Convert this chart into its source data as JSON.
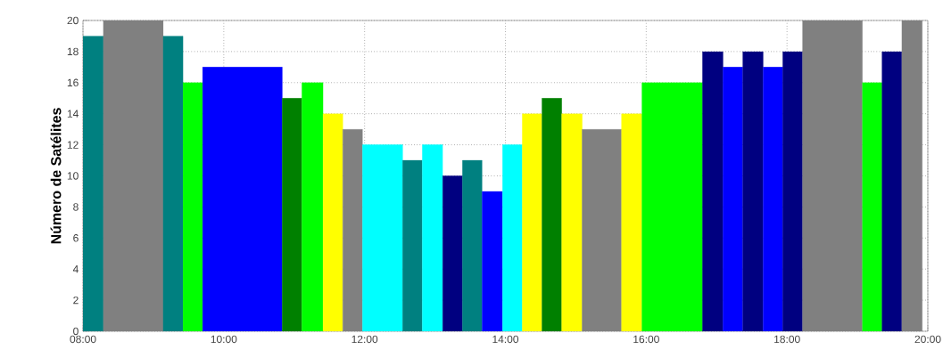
{
  "chart_data": {
    "type": "histogram",
    "ylabel": "Número de Satélites",
    "bins": [
      8.0,
      8.29,
      9.14,
      9.42,
      9.7,
      10.83,
      11.11,
      11.41,
      11.69,
      11.97,
      12.54,
      12.82,
      13.11,
      13.39,
      13.67,
      13.96,
      14.24,
      14.52,
      14.8,
      15.09,
      15.65,
      15.94,
      16.8,
      17.09,
      17.37,
      17.66,
      17.94,
      18.22,
      19.07,
      19.35,
      19.63,
      19.92
    ],
    "values": [
      19,
      20,
      19,
      16,
      17,
      15,
      16,
      14,
      13,
      12,
      11,
      12,
      10,
      11,
      9,
      12,
      14,
      15,
      14,
      13,
      14,
      16,
      18,
      17,
      18,
      17,
      18,
      20,
      16,
      18,
      20
    ],
    "colors": [
      "#008080",
      "#808080",
      "#008080",
      "#00ff00",
      "#0000ff",
      "#008000",
      "#00ff00",
      "#ffff00",
      "#808080",
      "#00ffff",
      "#008080",
      "#00ffff",
      "#000080",
      "#008080",
      "#0000ff",
      "#00ffff",
      "#ffff00",
      "#008000",
      "#ffff00",
      "#808080",
      "#ffff00",
      "#00ff00",
      "#000080",
      "#0000ff",
      "#000080",
      "#0000ff",
      "#000080",
      "#808080",
      "#00ff00",
      "#000080",
      "#808080"
    ],
    "xlim": [
      8,
      20
    ],
    "xticks": [
      {
        "value": 8,
        "label": "08:00"
      },
      {
        "value": 10,
        "label": "10:00"
      },
      {
        "value": 12,
        "label": "12:00"
      },
      {
        "value": 14,
        "label": "14:00"
      },
      {
        "value": 16,
        "label": "16:00"
      },
      {
        "value": 18,
        "label": "18:00"
      },
      {
        "value": 20,
        "label": "20:00"
      }
    ],
    "ylim": [
      0,
      20
    ],
    "yticks": [
      0,
      2,
      4,
      6,
      8,
      10,
      12,
      14,
      16,
      18,
      20
    ],
    "grid": true
  }
}
